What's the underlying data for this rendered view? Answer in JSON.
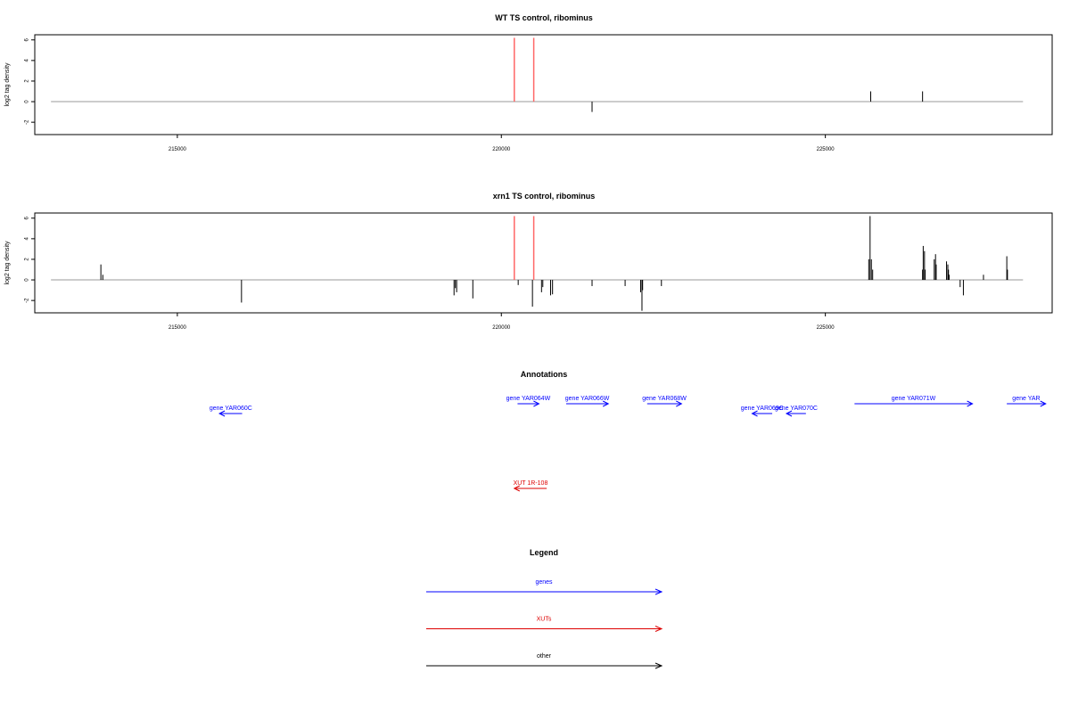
{
  "colors": {
    "gene": "#0000FF",
    "xut": "#DD0000",
    "other": "#000000",
    "highlight": "#FF6666",
    "baseline": "#999999",
    "signal": "#000000"
  },
  "chart_data": [
    {
      "type": "bar",
      "title": "WT TS control, ribominus",
      "ylabel": "log2 tag density",
      "xlim": [
        212800,
        228500
      ],
      "ylim": [
        -3.2,
        6.5
      ],
      "xticks": [
        215000,
        220000,
        225000
      ],
      "xtick_labels": [
        "215000",
        "220000",
        "225000"
      ],
      "yticks": [
        6,
        4,
        2,
        0,
        -2
      ],
      "ytick_labels": [
        "6",
        "4",
        "2",
        "0",
        "-2"
      ],
      "baseline": {
        "x": [
          213050,
          228050
        ],
        "y": 0
      },
      "highlight_x": [
        220200,
        220500
      ],
      "highlight_top": 6.2,
      "bars": [
        {
          "x": 221400,
          "y": -1.0
        },
        {
          "x": 225700,
          "y": 1.0
        },
        {
          "x": 226500,
          "y": 1.0
        }
      ]
    },
    {
      "type": "bar",
      "title": "xrn1 TS control, ribominus",
      "ylabel": "log2 tag density",
      "xlim": [
        212800,
        228500
      ],
      "ylim": [
        -3.2,
        6.5
      ],
      "xticks": [
        215000,
        220000,
        225000
      ],
      "xtick_labels": [
        "215000",
        "220000",
        "225000"
      ],
      "yticks": [
        6,
        4,
        2,
        0,
        -2
      ],
      "ytick_labels": [
        "6",
        "4",
        "2",
        "0",
        "-2"
      ],
      "baseline": {
        "x": [
          213050,
          228050
        ],
        "y": 0
      },
      "highlight_x": [
        220200,
        220500
      ],
      "highlight_top": 6.2,
      "bars": [
        {
          "x": 213820,
          "y": 1.5
        },
        {
          "x": 213850,
          "y": 0.5
        },
        {
          "x": 215990,
          "y": -2.2
        },
        {
          "x": 219270,
          "y": -1.5
        },
        {
          "x": 219290,
          "y": -0.8
        },
        {
          "x": 219310,
          "y": -1.2
        },
        {
          "x": 219560,
          "y": -1.8
        },
        {
          "x": 220260,
          "y": -0.5
        },
        {
          "x": 220480,
          "y": -2.6
        },
        {
          "x": 220620,
          "y": -1.2
        },
        {
          "x": 220640,
          "y": -0.7
        },
        {
          "x": 220760,
          "y": -1.5
        },
        {
          "x": 220790,
          "y": -1.4
        },
        {
          "x": 221400,
          "y": -0.6
        },
        {
          "x": 221910,
          "y": -0.6
        },
        {
          "x": 222150,
          "y": -1.2
        },
        {
          "x": 222170,
          "y": -3.0
        },
        {
          "x": 222180,
          "y": -1.0
        },
        {
          "x": 222470,
          "y": -0.6
        },
        {
          "x": 225670,
          "y": 2.0
        },
        {
          "x": 225690,
          "y": 6.2
        },
        {
          "x": 225710,
          "y": 2.0
        },
        {
          "x": 225730,
          "y": 1.0
        },
        {
          "x": 226500,
          "y": 1.0
        },
        {
          "x": 226510,
          "y": 3.3
        },
        {
          "x": 226530,
          "y": 2.8
        },
        {
          "x": 226540,
          "y": 1.0
        },
        {
          "x": 226680,
          "y": 2.0
        },
        {
          "x": 226700,
          "y": 2.5
        },
        {
          "x": 226710,
          "y": 1.5
        },
        {
          "x": 226870,
          "y": 1.8
        },
        {
          "x": 226890,
          "y": 1.5
        },
        {
          "x": 226900,
          "y": 1.0
        },
        {
          "x": 226910,
          "y": 0.5
        },
        {
          "x": 227080,
          "y": -0.7
        },
        {
          "x": 227130,
          "y": -1.5
        },
        {
          "x": 227440,
          "y": 0.5
        },
        {
          "x": 227800,
          "y": 2.3
        },
        {
          "x": 227810,
          "y": 1.0
        }
      ]
    }
  ],
  "annotations": {
    "title": "Annotations",
    "genes": [
      {
        "label": "gene YAR060C",
        "start": 216000,
        "end": 215650,
        "row": 2
      },
      {
        "label": "gene YAR064W",
        "start": 220250,
        "end": 220580,
        "row": 1
      },
      {
        "label": "gene YAR066W",
        "start": 221000,
        "end": 221650,
        "row": 1
      },
      {
        "label": "gene YAR068W",
        "start": 222250,
        "end": 222780,
        "row": 1
      },
      {
        "label": "gene YAR069C",
        "start": 224180,
        "end": 223870,
        "row": 2
      },
      {
        "label": "gene YAR070C",
        "start": 224700,
        "end": 224400,
        "row": 2
      },
      {
        "label": "gene YAR071W",
        "start": 225450,
        "end": 227270,
        "row": 1
      },
      {
        "label": "gene YAR",
        "start": 227800,
        "end": 228400,
        "row": 1
      }
    ],
    "xuts": [
      {
        "label": "XUT 1R-108",
        "start": 220700,
        "end": 220200,
        "row": 1
      }
    ]
  },
  "legend": {
    "title": "Legend",
    "items": [
      {
        "label": "genes",
        "kind": "gene"
      },
      {
        "label": "XUTs",
        "kind": "xut"
      },
      {
        "label": "other",
        "kind": "other"
      }
    ]
  }
}
